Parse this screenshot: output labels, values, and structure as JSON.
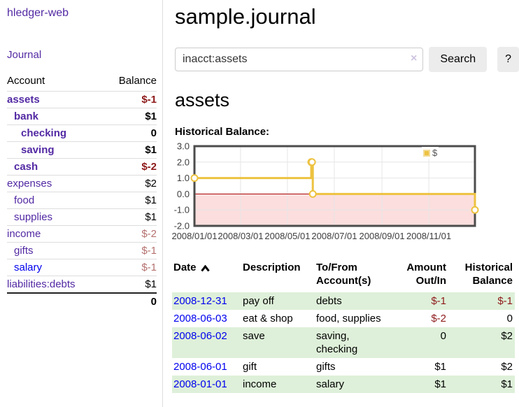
{
  "sidebar": {
    "app_title": "hledger-web",
    "nav": {
      "journal_label": "Journal"
    },
    "accounts_table": {
      "headers": {
        "account": "Account",
        "balance": "Balance"
      },
      "rows": [
        {
          "name": "assets",
          "depth": 0,
          "bold": true,
          "link_tone": "purple",
          "balance": "$-1",
          "balance_tone": "neg-strong"
        },
        {
          "name": "bank",
          "depth": 1,
          "bold": true,
          "link_tone": "purple",
          "balance": "$1",
          "balance_tone": "plain"
        },
        {
          "name": "checking",
          "depth": 2,
          "bold": true,
          "link_tone": "purple",
          "balance": "0",
          "balance_tone": "plain"
        },
        {
          "name": "saving",
          "depth": 2,
          "bold": true,
          "link_tone": "purple",
          "balance": "$1",
          "balance_tone": "plain"
        },
        {
          "name": "cash",
          "depth": 1,
          "bold": true,
          "link_tone": "purple",
          "balance": "$-2",
          "balance_tone": "neg-strong"
        },
        {
          "name": "expenses",
          "depth": 0,
          "bold": false,
          "link_tone": "purple",
          "balance": "$2",
          "balance_tone": "plain"
        },
        {
          "name": "food",
          "depth": 1,
          "bold": false,
          "link_tone": "purple",
          "balance": "$1",
          "balance_tone": "plain"
        },
        {
          "name": "supplies",
          "depth": 1,
          "bold": false,
          "link_tone": "purple",
          "balance": "$1",
          "balance_tone": "plain"
        },
        {
          "name": "income",
          "depth": 0,
          "bold": false,
          "link_tone": "purple",
          "balance": "$-2",
          "balance_tone": "neg-muted"
        },
        {
          "name": "gifts",
          "depth": 1,
          "bold": false,
          "link_tone": "purple",
          "balance": "$-1",
          "balance_tone": "neg-muted"
        },
        {
          "name": "salary",
          "depth": 1,
          "bold": false,
          "link_tone": "blue",
          "balance": "$-1",
          "balance_tone": "neg-muted"
        },
        {
          "name": "liabilities:debts",
          "depth": 0,
          "bold": false,
          "link_tone": "purple",
          "balance": "$1",
          "balance_tone": "plain"
        }
      ],
      "total": "0"
    }
  },
  "main": {
    "page_title": "sample.journal",
    "search": {
      "query": "inacct:assets",
      "clear_icon": "×",
      "search_button_label": "Search",
      "help_button_label": "?"
    },
    "account_heading": "assets",
    "chart_heading": "Historical Balance:",
    "register_table": {
      "headers": {
        "date": "Date",
        "description": "Description",
        "accounts": "To/From Account(s)",
        "amount": "Amount Out/In",
        "balance": "Historical Balance"
      },
      "rows": [
        {
          "date": "2008-12-31",
          "description": "pay off",
          "accounts": "debts",
          "amount": "$-1",
          "amount_negative": true,
          "balance": "$-1",
          "balance_negative": true,
          "shaded": true
        },
        {
          "date": "2008-06-03",
          "description": "eat & shop",
          "accounts": "food, supplies",
          "amount": "$-2",
          "amount_negative": true,
          "balance": "0",
          "balance_negative": false,
          "shaded": false
        },
        {
          "date": "2008-06-02",
          "description": "save",
          "accounts": "saving, checking",
          "amount": "0",
          "amount_negative": false,
          "balance": "$2",
          "balance_negative": false,
          "shaded": true
        },
        {
          "date": "2008-06-01",
          "description": "gift",
          "accounts": "gifts",
          "amount": "$1",
          "amount_negative": false,
          "balance": "$2",
          "balance_negative": false,
          "shaded": false
        },
        {
          "date": "2008-01-01",
          "description": "income",
          "accounts": "salary",
          "amount": "$1",
          "amount_negative": false,
          "balance": "$1",
          "balance_negative": false,
          "shaded": true
        }
      ]
    }
  },
  "chart_data": {
    "type": "line",
    "step": true,
    "title": "Historical Balance:",
    "series": [
      {
        "name": "$",
        "color": "#edc240",
        "points": [
          [
            "2008-01-01",
            1
          ],
          [
            "2008-06-01",
            2
          ],
          [
            "2008-06-02",
            2
          ],
          [
            "2008-06-03",
            0
          ],
          [
            "2008-12-31",
            -1
          ]
        ]
      }
    ],
    "xlim": [
      "2008-01-01",
      "2008-12-31"
    ],
    "ylim": [
      -2,
      3
    ],
    "x_ticks": [
      {
        "date": "2008-01-01",
        "label": "2008/01/01"
      },
      {
        "date": "2008-03-01",
        "label": "2008/03/01"
      },
      {
        "date": "2008-05-01",
        "label": "2008/05/01"
      },
      {
        "date": "2008-07-01",
        "label": "2008/07/01"
      },
      {
        "date": "2008-09-01",
        "label": "2008/09/01"
      },
      {
        "date": "2008-11-01",
        "label": "2008/11/01"
      }
    ],
    "y_ticks": [
      {
        "value": 3,
        "label": "3.0"
      },
      {
        "value": 2,
        "label": "2.0"
      },
      {
        "value": 1,
        "label": "1.0"
      },
      {
        "value": 0,
        "label": "0.0"
      },
      {
        "value": -1,
        "label": "-1.0"
      },
      {
        "value": -2,
        "label": "-2.0"
      }
    ],
    "grid": true,
    "legend_position": "top-right",
    "legend_label": "$"
  },
  "colors": {
    "link_purple": "#5229a3",
    "link_blue": "#0000ee",
    "negative_strong": "#8e1a1a",
    "negative_muted": "#b4716f",
    "row_stripe_green": "#def0d9",
    "chart_line": "#edc240",
    "chart_negative_region": "#fcdede",
    "chart_zero_line": "#aa0000",
    "chart_border": "#4c4c4c",
    "chart_grid": "#e6e6e6"
  }
}
